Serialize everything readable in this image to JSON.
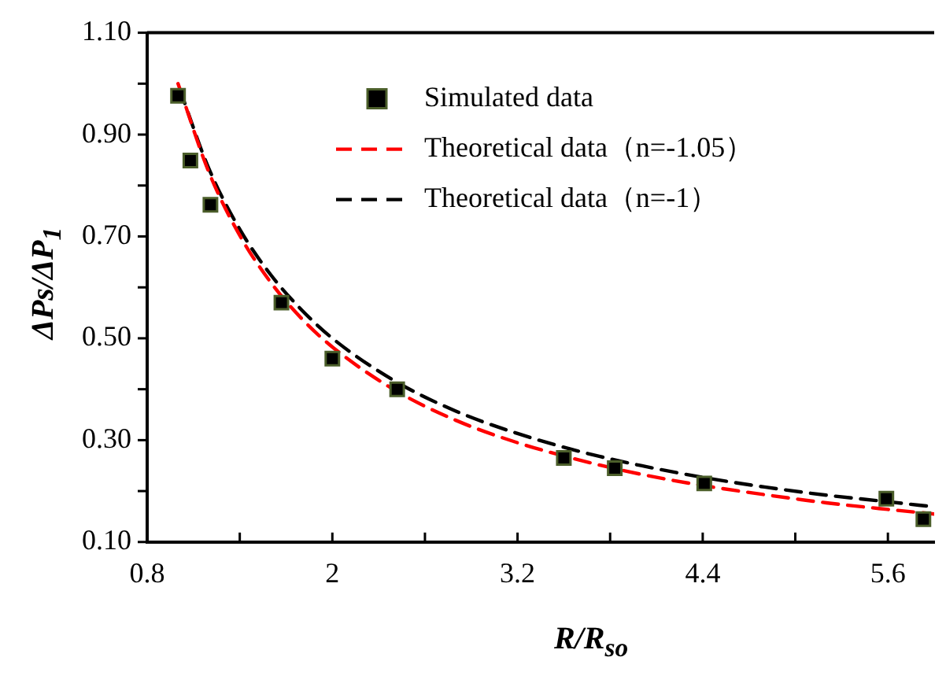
{
  "chart_data": {
    "type": "scatter",
    "xlabel": "R/R$_{so}$",
    "ylabel": "ΔPs/ΔP$_{1}$",
    "xlim": [
      0.8,
      5.9
    ],
    "xticks": [
      0.8,
      {
        "value": 1.4,
        "label": null
      },
      2,
      {
        "value": 2.6,
        "label": null
      },
      3.2,
      {
        "value": 3.8,
        "label": null
      },
      4.4,
      {
        "value": 5.0,
        "label": null
      },
      5.6
    ],
    "ylim": [
      0.1,
      1.1
    ],
    "yticks": [
      {
        "value": 0.1,
        "label": "0.10"
      },
      {
        "value": 0.2,
        "label": null
      },
      {
        "value": 0.3,
        "label": "0.30"
      },
      {
        "value": 0.4,
        "label": null
      },
      {
        "value": 0.5,
        "label": "0.50"
      },
      {
        "value": 0.6,
        "label": null
      },
      {
        "value": 0.7,
        "label": "0.70"
      },
      {
        "value": 0.8,
        "label": null
      },
      {
        "value": 0.9,
        "label": "0.90"
      },
      {
        "value": 1.0,
        "label": null
      },
      {
        "value": 1.1,
        "label": "1.10"
      }
    ],
    "grid": false,
    "legend": "top right",
    "series": [
      {
        "name": "Simulated data",
        "marker": "square",
        "color": "#000000",
        "x": [
          1.0,
          1.08,
          1.21,
          1.67,
          2.0,
          2.42,
          3.5,
          3.83,
          4.41,
          5.59,
          5.83
        ],
        "values": [
          0.976,
          0.849,
          0.762,
          0.57,
          0.46,
          0.4,
          0.265,
          0.245,
          0.215,
          0.185,
          0.145
        ]
      },
      {
        "name": "Theoretical data（n=-1.05）",
        "type": "line",
        "marker": "none",
        "line_style": "dashed",
        "color": "#ff0000",
        "x": [
          1.0,
          1.2,
          1.4,
          1.6,
          1.8,
          2.0,
          2.4,
          2.8,
          3.2,
          3.6,
          4.0,
          4.4,
          4.8,
          5.2,
          5.6,
          5.9
        ],
        "values": [
          1.0,
          0.826,
          0.702,
          0.61,
          0.539,
          0.483,
          0.399,
          0.339,
          0.295,
          0.261,
          0.233,
          0.211,
          0.193,
          0.177,
          0.164,
          0.155
        ]
      },
      {
        "name": "Theoretical data（n=-1）",
        "type": "line",
        "marker": "none",
        "line_style": "dashed",
        "color": "#000000",
        "x": [
          1.01,
          1.2,
          1.4,
          1.6,
          1.8,
          2.0,
          2.4,
          2.8,
          3.2,
          3.6,
          4.0,
          4.4,
          4.8,
          5.2,
          5.6,
          5.9
        ],
        "values": [
          0.99,
          0.833,
          0.714,
          0.625,
          0.556,
          0.5,
          0.417,
          0.357,
          0.313,
          0.278,
          0.25,
          0.227,
          0.208,
          0.192,
          0.179,
          0.169
        ]
      }
    ]
  }
}
